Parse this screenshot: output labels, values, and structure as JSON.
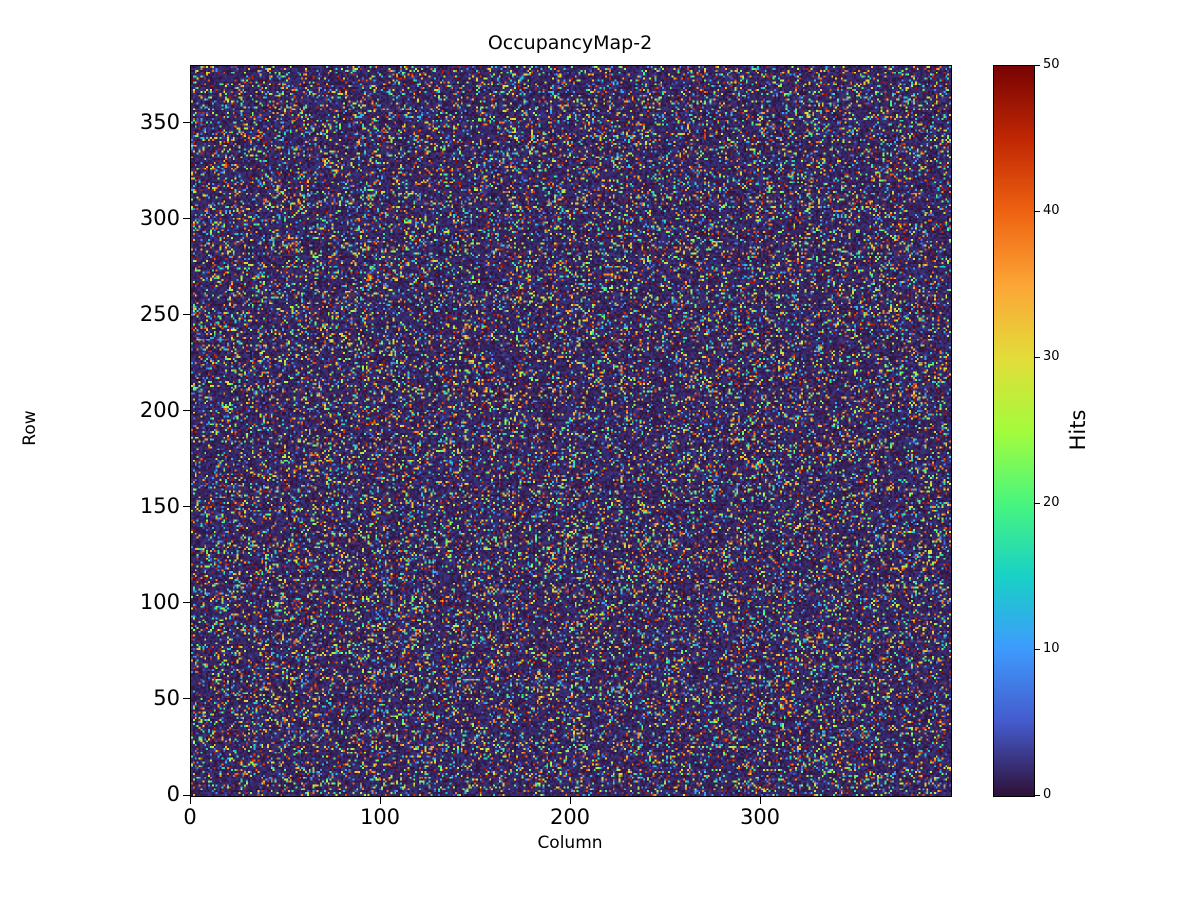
{
  "chart_data": {
    "type": "heatmap",
    "title": "OccupancyMap-2",
    "xlabel": "Column",
    "ylabel": "Row",
    "colorbar_label": "Hits",
    "cols": 400,
    "rows": 380,
    "xlim": [
      0,
      400
    ],
    "ylim": [
      0,
      380
    ],
    "vmin": 0,
    "vmax": 50,
    "x_ticks": [
      0,
      100,
      200,
      300
    ],
    "y_ticks": [
      0,
      50,
      100,
      150,
      200,
      250,
      300,
      350
    ],
    "colorbar_ticks": [
      0,
      10,
      20,
      30,
      40,
      50
    ],
    "legend": "none",
    "grid": false,
    "colormap": "turbo",
    "colormap_stops": [
      [
        0.0,
        48,
        18,
        59
      ],
      [
        0.1,
        69,
        91,
        205
      ],
      [
        0.2,
        62,
        155,
        254
      ],
      [
        0.3,
        24,
        209,
        199
      ],
      [
        0.4,
        72,
        246,
        127
      ],
      [
        0.5,
        164,
        252,
        60
      ],
      [
        0.6,
        227,
        221,
        57
      ],
      [
        0.7,
        253,
        166,
        55
      ],
      [
        0.8,
        239,
        100,
        18
      ],
      [
        0.9,
        194,
        40,
        4
      ],
      [
        1.0,
        122,
        4,
        3
      ]
    ],
    "noise": {
      "seed": 7,
      "background_fraction": 0.8,
      "background_max": 2.5,
      "hit_max": 50
    },
    "description": "Sparse random occupancy map: mostly near-zero (dark) background pixels with ~20% scattered hit pixels whose values are uniformly distributed between 0 and 50 hits."
  },
  "colors": {
    "background": "#ffffff",
    "axes_text": "#000000",
    "spine": "#000000"
  }
}
